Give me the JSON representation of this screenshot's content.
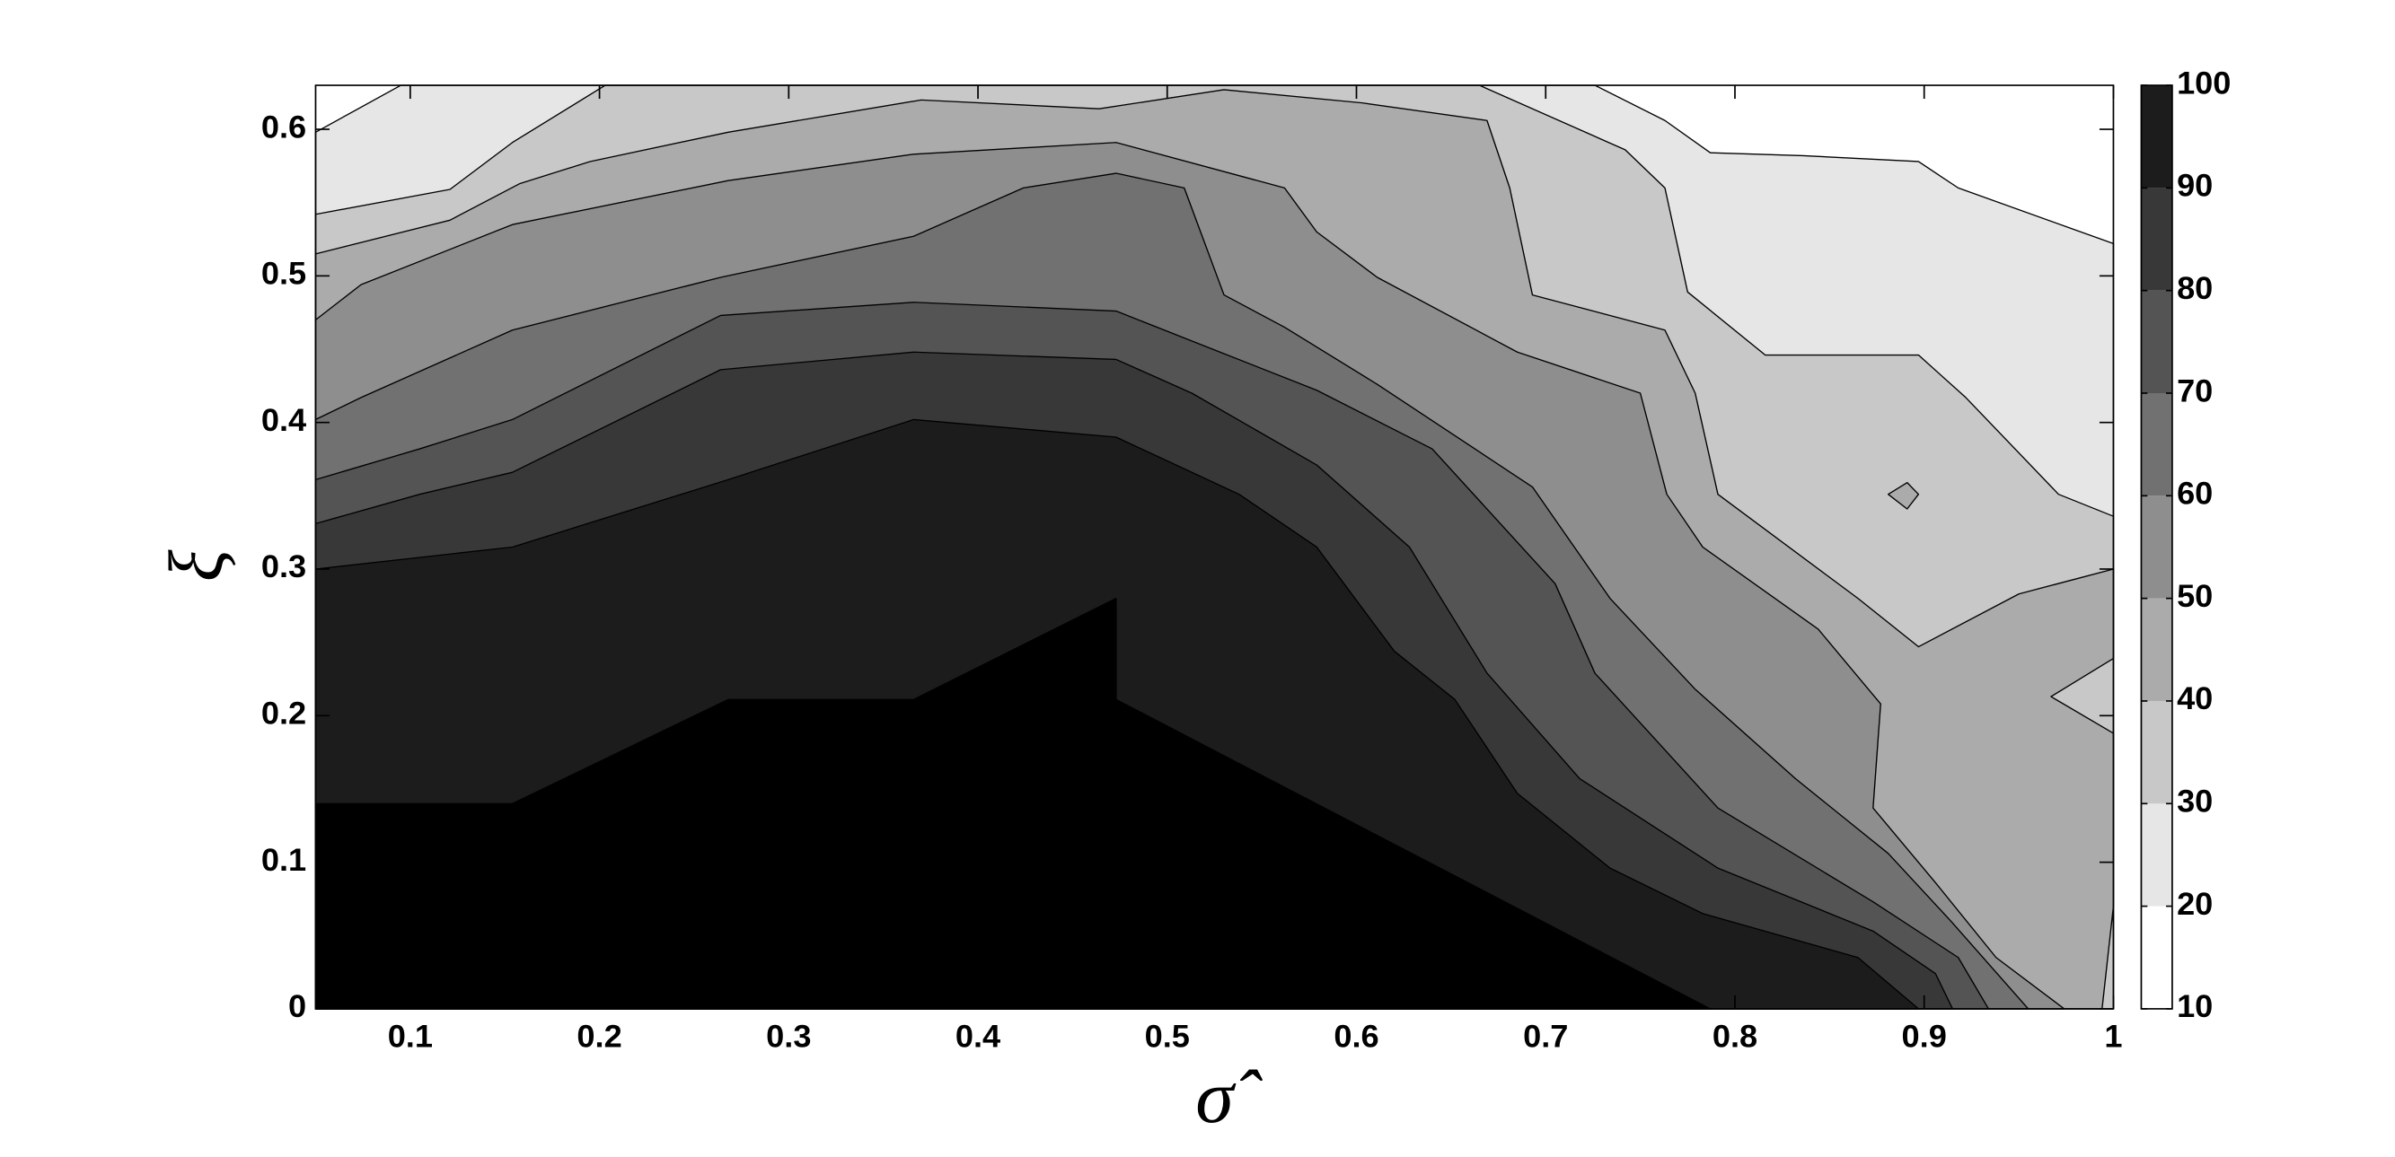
{
  "chart_data": {
    "type": "contourf",
    "xlabel": "σ̂",
    "ylabel": "ξ",
    "xlim": [
      0.05,
      1
    ],
    "ylim": [
      0,
      0.63
    ],
    "xticks": [
      0.1,
      0.2,
      0.3,
      0.4,
      0.5,
      0.6,
      0.7,
      0.8,
      0.9,
      1
    ],
    "yticks": [
      0,
      0.1,
      0.2,
      0.3,
      0.4,
      0.5,
      0.6
    ],
    "regions": [
      {
        "color": "#e6e6e6",
        "x": [
          0.05,
          0.095,
          0.726,
          0.763,
          0.787,
          0.836,
          0.897,
          0.918,
          1,
          1,
          0.05
        ],
        "y": [
          0.598,
          0.63,
          0.63,
          0.606,
          0.584,
          0.582,
          0.578,
          0.56,
          0.522,
          0,
          0
        ]
      },
      {
        "color": "#c8c8c8",
        "x": [
          0.05,
          0.121,
          0.154,
          0.203,
          0.665,
          0.742,
          0.763,
          0.775,
          0.816,
          0.897,
          0.922,
          0.971,
          1,
          1,
          0.05
        ],
        "y": [
          0.542,
          0.559,
          0.591,
          0.63,
          0.63,
          0.586,
          0.56,
          0.489,
          0.446,
          0.446,
          0.417,
          0.351,
          0.336,
          0,
          0
        ]
      },
      {
        "color": "#ababab",
        "x": [
          0.05,
          0.121,
          0.158,
          0.195,
          0.268,
          0.37,
          0.464,
          0.53,
          0.603,
          0.669,
          0.681,
          0.693,
          0.763,
          0.779,
          0.791,
          0.865,
          0.897,
          0.95,
          1,
          1,
          0.967,
          1,
          1,
          0.994,
          0.05
        ],
        "y": [
          0.515,
          0.538,
          0.563,
          0.578,
          0.598,
          0.62,
          0.614,
          0.627,
          0.618,
          0.606,
          0.56,
          0.487,
          0.463,
          0.42,
          0.351,
          0.28,
          0.247,
          0.283,
          0.3,
          0.239,
          0.213,
          0.188,
          0.07,
          0,
          0
        ]
      },
      {
        "color": "#ababab",
        "x": [
          0.881,
          0.891,
          0.897,
          0.891
        ],
        "y": [
          0.351,
          0.359,
          0.351,
          0.341
        ]
      },
      {
        "color": "#8e8e8e",
        "x": [
          0.05,
          0.074,
          0.154,
          0.268,
          0.366,
          0.473,
          0.562,
          0.579,
          0.611,
          0.685,
          0.75,
          0.764,
          0.783,
          0.844,
          0.877,
          0.873,
          0.906,
          0.938,
          0.974,
          0.05
        ],
        "y": [
          0.47,
          0.494,
          0.535,
          0.565,
          0.583,
          0.591,
          0.56,
          0.53,
          0.499,
          0.448,
          0.42,
          0.351,
          0.315,
          0.259,
          0.208,
          0.137,
          0.086,
          0.035,
          0,
          0
        ]
      },
      {
        "color": "#717171",
        "x": [
          0.05,
          0.074,
          0.154,
          0.264,
          0.366,
          0.424,
          0.473,
          0.509,
          0.53,
          0.562,
          0.611,
          0.693,
          0.734,
          0.779,
          0.832,
          0.881,
          0.914,
          0.955,
          0.05
        ],
        "y": [
          0.402,
          0.417,
          0.463,
          0.499,
          0.527,
          0.56,
          0.57,
          0.56,
          0.487,
          0.465,
          0.426,
          0.356,
          0.28,
          0.218,
          0.157,
          0.106,
          0.06,
          0,
          0
        ]
      },
      {
        "color": "#545454",
        "x": [
          0.05,
          0.105,
          0.154,
          0.264,
          0.366,
          0.473,
          0.522,
          0.579,
          0.64,
          0.705,
          0.726,
          0.791,
          0.873,
          0.918,
          0.934,
          0.05
        ],
        "y": [
          0.361,
          0.382,
          0.402,
          0.473,
          0.482,
          0.476,
          0.451,
          0.422,
          0.382,
          0.29,
          0.229,
          0.137,
          0.073,
          0.035,
          0,
          0
        ]
      },
      {
        "color": "#383838",
        "x": [
          0.05,
          0.105,
          0.154,
          0.264,
          0.366,
          0.473,
          0.513,
          0.579,
          0.628,
          0.669,
          0.718,
          0.791,
          0.873,
          0.906,
          0.915,
          0.05
        ],
        "y": [
          0.331,
          0.351,
          0.366,
          0.436,
          0.448,
          0.443,
          0.42,
          0.371,
          0.315,
          0.229,
          0.157,
          0.096,
          0.053,
          0.024,
          0,
          0
        ]
      },
      {
        "color": "#1c1c1c",
        "x": [
          0.05,
          0.154,
          0.268,
          0.366,
          0.473,
          0.538,
          0.579,
          0.62,
          0.652,
          0.685,
          0.734,
          0.783,
          0.865,
          0.897,
          0.05
        ],
        "y": [
          0.3,
          0.315,
          0.361,
          0.402,
          0.39,
          0.351,
          0.315,
          0.244,
          0.211,
          0.147,
          0.096,
          0.065,
          0.035,
          0,
          0
        ]
      },
      {
        "color": "#000000",
        "x": [
          0.05,
          0.154,
          0.268,
          0.366,
          0.473,
          0.473,
          0.787,
          0.05
        ],
        "y": [
          0.14,
          0.14,
          0.211,
          0.211,
          0.28,
          0.211,
          0,
          0
        ]
      }
    ],
    "colorbar": {
      "ticks": [
        10,
        20,
        30,
        40,
        50,
        60,
        70,
        80,
        90,
        100
      ],
      "colors": [
        "#ffffff",
        "#e6e6e6",
        "#c8c8c8",
        "#ababab",
        "#8e8e8e",
        "#717171",
        "#545454",
        "#383838",
        "#1c1c1c"
      ]
    }
  }
}
